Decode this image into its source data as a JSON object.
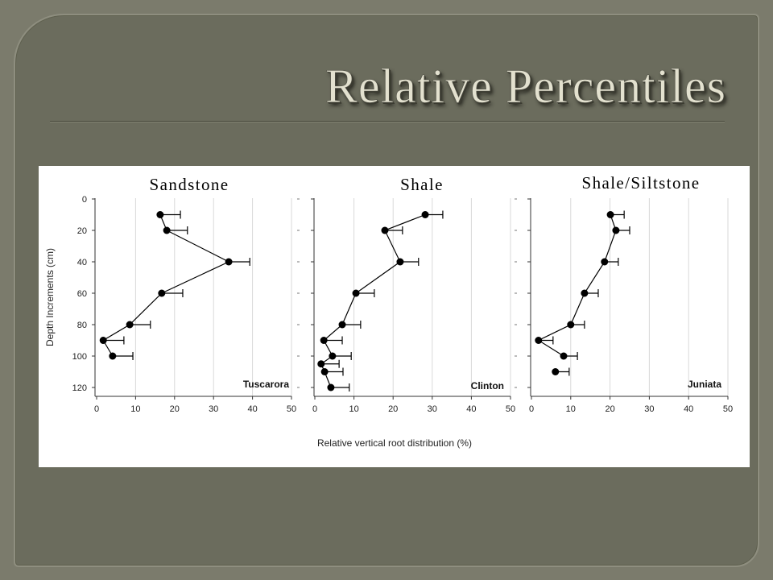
{
  "slide": {
    "title": "Relative Percentiles"
  },
  "colors": {
    "slide_background": "#7b7b6c",
    "panel": "#6b6c5d",
    "title_text": "#e3e1cf",
    "chart_background": "#ffffff",
    "marker": "#000000",
    "axis": "#333333",
    "gridline": "#d9d9d9"
  },
  "chart_data": [
    {
      "type": "line",
      "title": "Sandstone",
      "annotation": "Tuscarora",
      "xlabel": "",
      "ylabel": "Depth Increments (cm)",
      "xlim": [
        0,
        50
      ],
      "ylim": [
        0,
        120
      ],
      "y_axis_inverted": true,
      "grid": "vertical",
      "xticks": [
        0,
        10,
        20,
        30,
        40,
        50
      ],
      "yticks": [
        0,
        20,
        40,
        60,
        80,
        100,
        120
      ],
      "points": [
        {
          "depth": 10,
          "value": 16.3,
          "error": 5.2
        },
        {
          "depth": 20,
          "value": 18.0,
          "error": 5.3
        },
        {
          "depth": 40,
          "value": 33.9,
          "error": 5.4
        },
        {
          "depth": 60,
          "value": 16.7,
          "error": 5.4
        },
        {
          "depth": 80,
          "value": 8.5,
          "error": 5.3
        },
        {
          "depth": 90,
          "value": 1.7,
          "error": 5.3
        },
        {
          "depth": 100,
          "value": 4.1,
          "error": 5.2
        }
      ]
    },
    {
      "type": "line",
      "title": "Shale",
      "annotation": "Clinton",
      "xlabel": "Relative vertical root distribution (%)",
      "ylabel": "",
      "xlim": [
        0,
        50
      ],
      "ylim": [
        0,
        120
      ],
      "y_axis_inverted": true,
      "grid": "vertical",
      "xticks": [
        0,
        10,
        20,
        30,
        40,
        50
      ],
      "yticks": [],
      "points": [
        {
          "depth": 10,
          "value": 28.2,
          "error": 4.5
        },
        {
          "depth": 20,
          "value": 17.9,
          "error": 4.5
        },
        {
          "depth": 40,
          "value": 21.8,
          "error": 4.7
        },
        {
          "depth": 60,
          "value": 10.5,
          "error": 4.7
        },
        {
          "depth": 80,
          "value": 7.0,
          "error": 4.7
        },
        {
          "depth": 90,
          "value": 2.3,
          "error": 4.7
        },
        {
          "depth": 100,
          "value": 4.5,
          "error": 4.8
        },
        {
          "depth": 105,
          "value": 1.6,
          "error": 4.6
        },
        {
          "depth": 110,
          "value": 2.5,
          "error": 4.7
        },
        {
          "depth": 120,
          "value": 4.1,
          "error": 4.7
        }
      ]
    },
    {
      "type": "line",
      "title": "Shale/Siltstone",
      "annotation": "Juniata",
      "xlabel": "",
      "ylabel": "",
      "xlim": [
        0,
        50
      ],
      "ylim": [
        0,
        120
      ],
      "y_axis_inverted": true,
      "grid": "vertical",
      "xticks": [
        0,
        10,
        20,
        30,
        40,
        50
      ],
      "yticks": [],
      "points": [
        {
          "depth": 10,
          "value": 20.1,
          "error": 3.5
        },
        {
          "depth": 20,
          "value": 21.5,
          "error": 3.5
        },
        {
          "depth": 40,
          "value": 18.6,
          "error": 3.5
        },
        {
          "depth": 60,
          "value": 13.5,
          "error": 3.5
        },
        {
          "depth": 80,
          "value": 10.0,
          "error": 3.5
        },
        {
          "depth": 90,
          "value": 1.8,
          "error": 3.7
        },
        {
          "depth": 100,
          "value": 8.2,
          "error": 3.5
        },
        {
          "depth": 110,
          "value": 6.1,
          "error": 3.5,
          "connected": false
        }
      ]
    }
  ]
}
